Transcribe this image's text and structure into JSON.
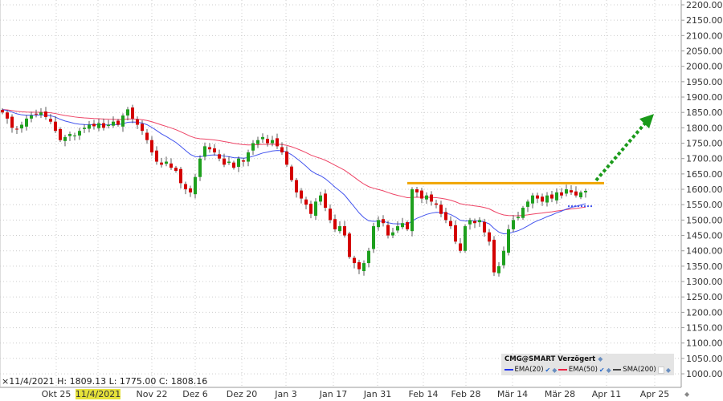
{
  "info": {
    "marker": "×",
    "text": "11/4/2021  H: 1809.13  L: 1775.00  C: 1808.16"
  },
  "legend": {
    "title": "CMG@SMART Verzögert",
    "ema20": "EMA(20)",
    "ema50": "EMA(50)",
    "sma200": "SMA(200)"
  },
  "colors": {
    "up": "#1ea01e",
    "down": "#d40000",
    "ema20": "#4455ee",
    "ema50": "#ee4466",
    "resistance": "#f0a500",
    "arrow": "#1a9a1a"
  },
  "chart_data": {
    "type": "candlestick",
    "title": "",
    "ylim": [
      1000,
      2200
    ],
    "y_ticks": [
      "2200.00",
      "2150.00",
      "2100.00",
      "2050.00",
      "2000.00",
      "1950.00",
      "1900.00",
      "1850.00",
      "1800.00",
      "1750.00",
      "1700.00",
      "1650.00",
      "1600.00",
      "1550.00",
      "1500.00",
      "1450.00",
      "1400.00",
      "1350.00",
      "1300.00",
      "1250.00",
      "1200.00",
      "1150.00",
      "1100.00",
      "1050.00",
      "1000.00"
    ],
    "x_ticks": [
      "Okt 25",
      "11/4/2021",
      "Nov 22",
      "Dez 6",
      "Dez 20",
      "Jan 3",
      "Jan 17",
      "Jan 31",
      "Feb 14",
      "Feb 28",
      "Mär 14",
      "Mär 28",
      "Apr 11",
      "Apr 25"
    ],
    "highlighted_tick": "11/4/2021",
    "closes": [
      1850,
      1830,
      1800,
      1795,
      1810,
      1830,
      1840,
      1845,
      1850,
      1835,
      1820,
      1790,
      1760,
      1770,
      1780,
      1775,
      1790,
      1800,
      1810,
      1805,
      1815,
      1800,
      1810,
      1820,
      1810,
      1840,
      1860,
      1830,
      1810,
      1790,
      1760,
      1720,
      1690,
      1680,
      1690,
      1670,
      1660,
      1620,
      1600,
      1590,
      1640,
      1700,
      1740,
      1730,
      1720,
      1700,
      1680,
      1690,
      1670,
      1700,
      1690,
      1720,
      1750,
      1760,
      1770,
      1750,
      1760,
      1740,
      1720,
      1680,
      1630,
      1590,
      1570,
      1550,
      1520,
      1560,
      1580,
      1540,
      1500,
      1470,
      1480,
      1450,
      1380,
      1360,
      1340,
      1360,
      1400,
      1480,
      1500,
      1490,
      1450,
      1460,
      1480,
      1490,
      1470,
      1600,
      1590,
      1570,
      1580,
      1560,
      1550,
      1520,
      1500,
      1480,
      1430,
      1400,
      1480,
      1500,
      1490,
      1500,
      1460,
      1430,
      1330,
      1350,
      1400,
      1470,
      1500,
      1510,
      1540,
      1560,
      1580,
      1570,
      1560,
      1580,
      1570,
      1590,
      1580,
      1600,
      1590,
      1580,
      1590,
      1595
    ],
    "indicators": [
      "EMA(20)",
      "EMA(50)",
      "SMA(200)"
    ],
    "annotations": {
      "resistance_level": 1620,
      "support_level": 1545,
      "target_arrow": [
        1629,
        1824
      ]
    }
  }
}
